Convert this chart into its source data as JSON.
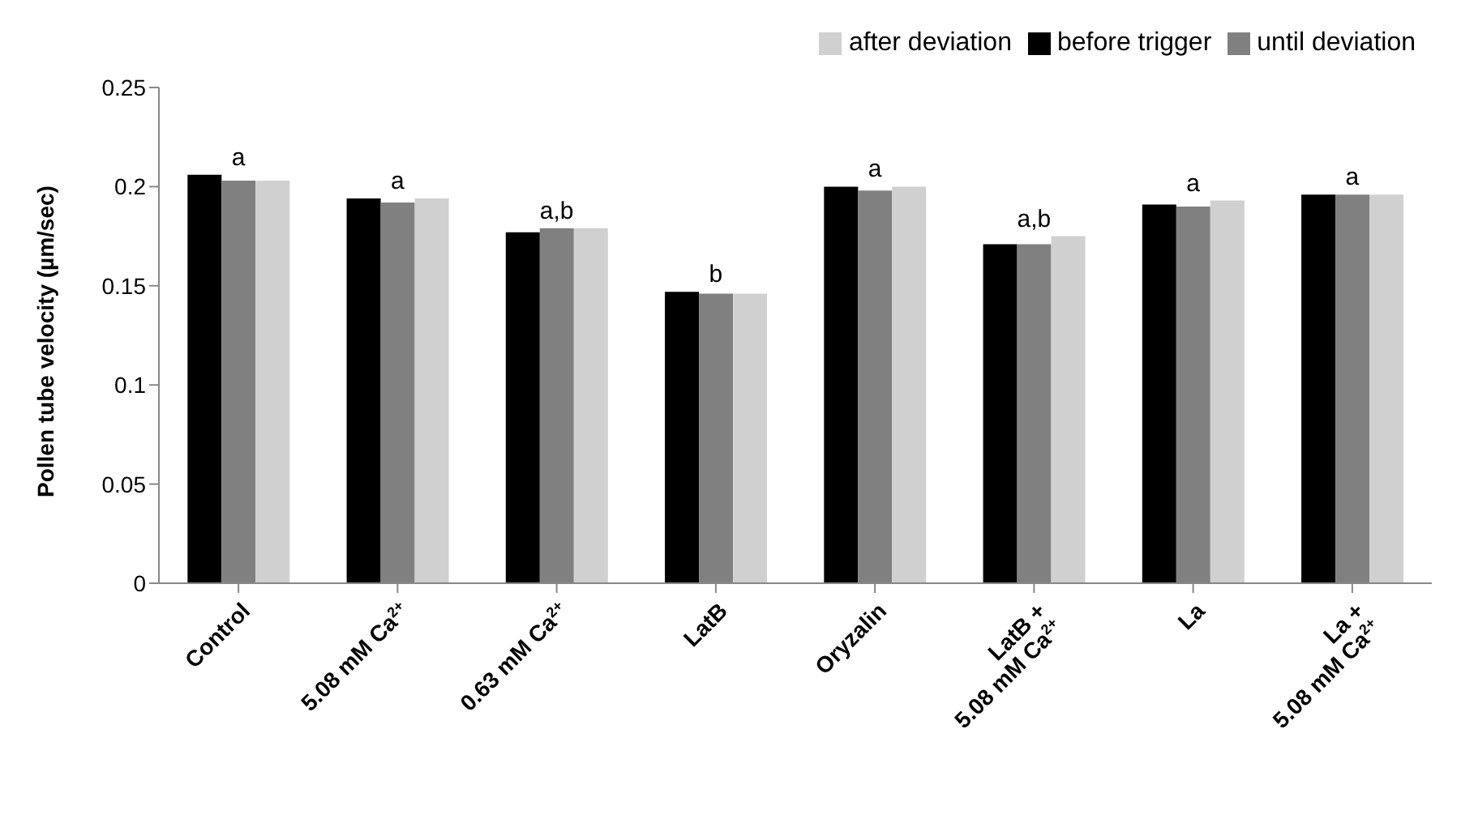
{
  "chart_data": {
    "type": "bar",
    "ylabel": "Pollen tube velocity  (µm/sec)",
    "categories": [
      "Control",
      "5.08 mM Ca$^{2+}$",
      "0.63 mM Ca$^{2+}$",
      "LatB",
      "Oryzalin",
      "LatB +\n5.08 mM Ca$^{2+}$",
      "La",
      "La +\n5.08 mM Ca$^{2+}$"
    ],
    "series": [
      {
        "name": "before trigger",
        "color": "#000000",
        "values": [
          0.206,
          0.194,
          0.177,
          0.147,
          0.2,
          0.171,
          0.191,
          0.196
        ]
      },
      {
        "name": "until deviation",
        "color": "#808080",
        "values": [
          0.203,
          0.192,
          0.179,
          0.146,
          0.198,
          0.171,
          0.19,
          0.196
        ]
      },
      {
        "name": "after deviation",
        "color": "#d0d0d0",
        "values": [
          0.203,
          0.194,
          0.179,
          0.146,
          0.2,
          0.175,
          0.193,
          0.196
        ]
      }
    ],
    "annotations": [
      {
        "text": "a",
        "x": "Control",
        "y": 0.206
      },
      {
        "text": "a",
        "x": "5.08 mM Ca$^{2+}$",
        "y": 0.194
      },
      {
        "text": "a,b",
        "x": "0.63 mM Ca$^{2+}$",
        "y": 0.179
      },
      {
        "text": "b",
        "x": "LatB",
        "y": 0.147
      },
      {
        "text": "a",
        "x": "Oryzalin",
        "y": 0.2
      },
      {
        "text": "a,b",
        "x": "LatB +\n5.08 mM Ca$^{2+}$",
        "y": 0.175
      },
      {
        "text": "a",
        "x": "La",
        "y": 0.193
      },
      {
        "text": "a",
        "x": "La +\n5.08 mM Ca$^{2+}$",
        "y": 0.196
      }
    ],
    "ylim": [
      0,
      0.25
    ],
    "yticks": [
      0,
      0.05,
      0.1,
      0.15,
      0.2,
      0.25
    ],
    "grid": false,
    "legend": "top right"
  }
}
